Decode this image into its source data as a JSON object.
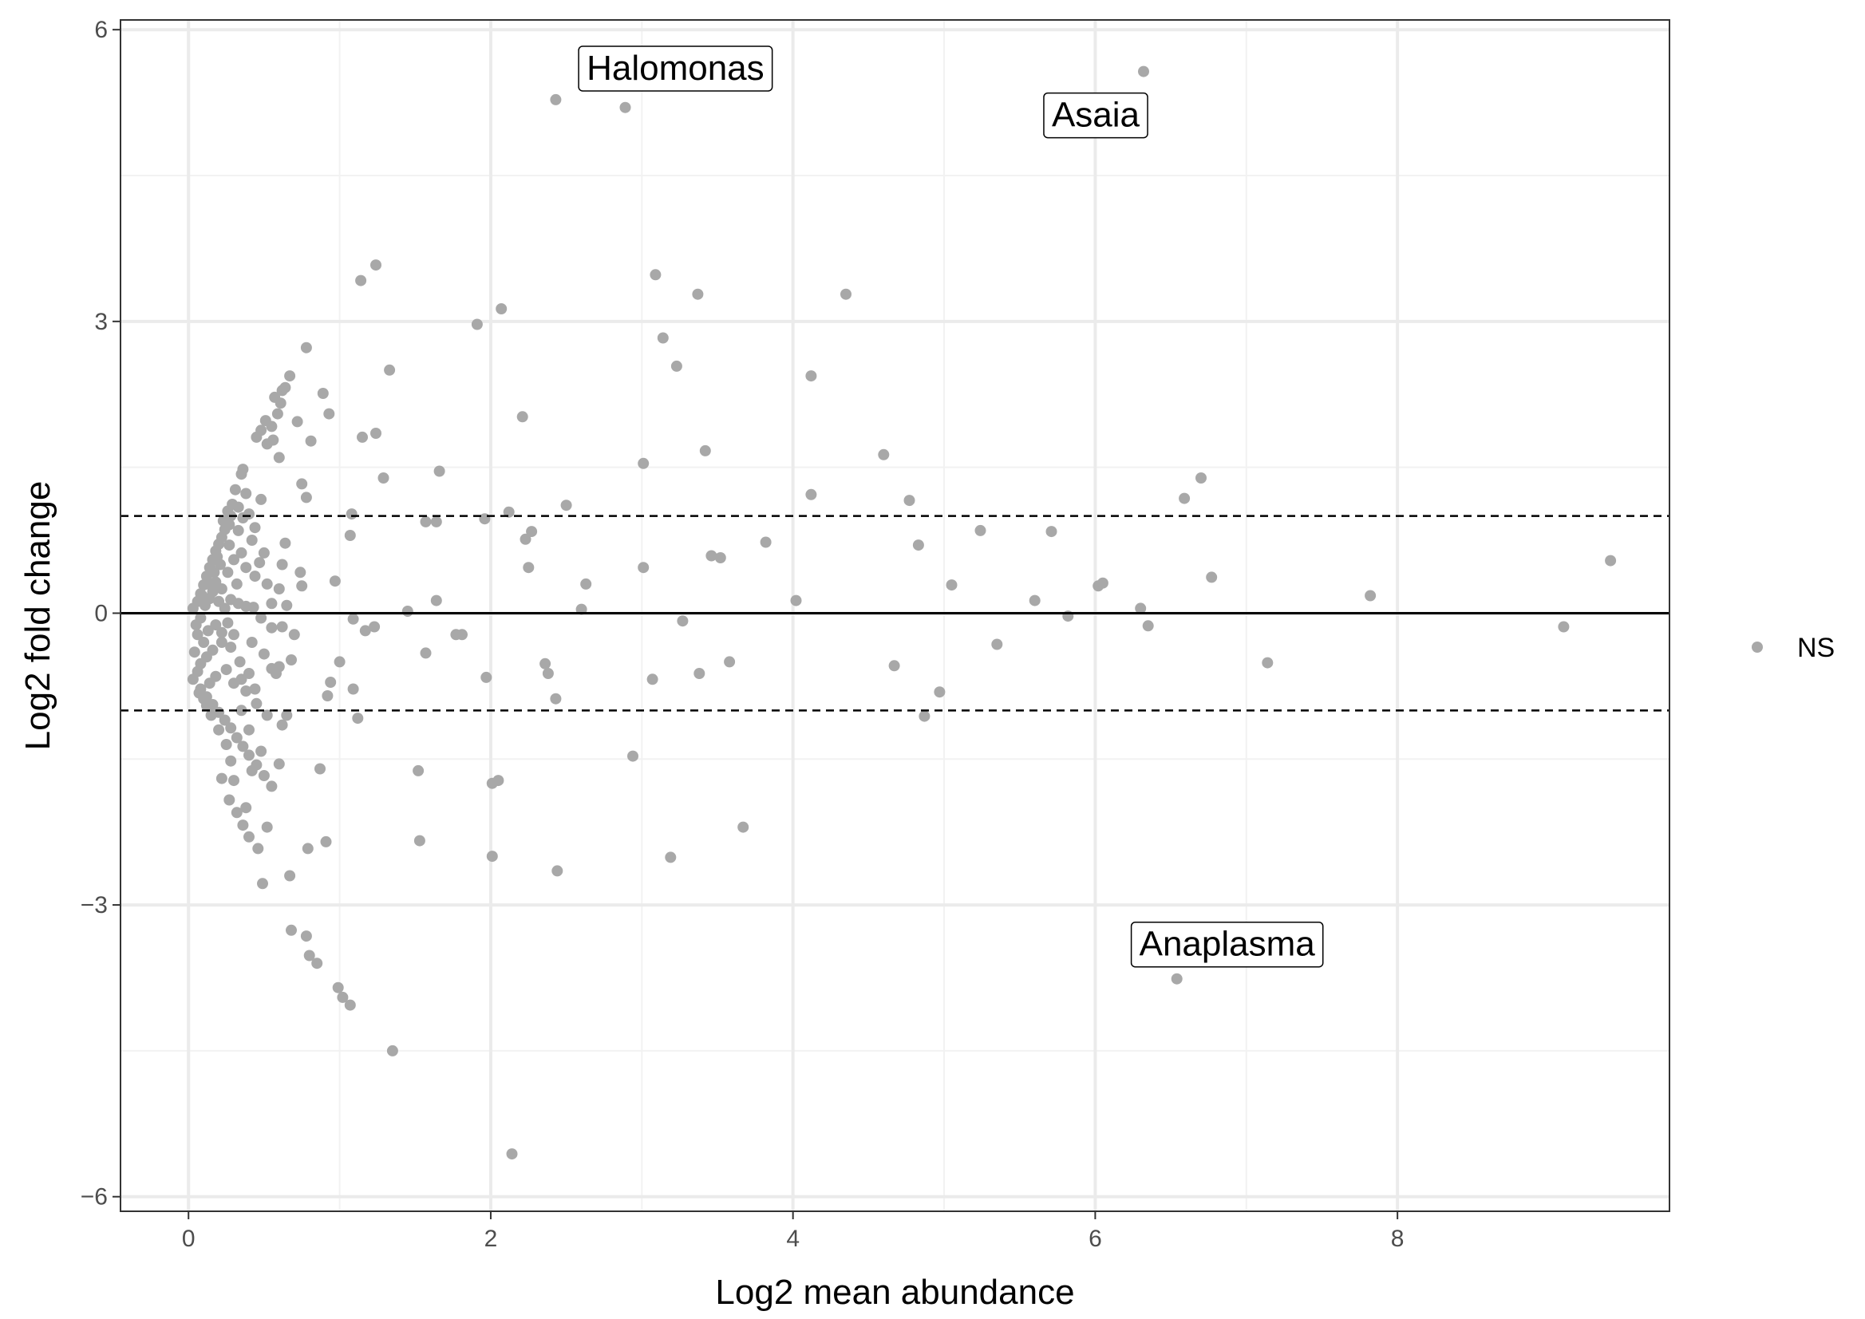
{
  "chart_data": {
    "type": "scatter",
    "xlabel": "Log2 mean abundance",
    "ylabel": "Log2 fold change",
    "xlim": [
      -0.45,
      9.8
    ],
    "ylim": [
      -6.15,
      6.1
    ],
    "x_ticks": [
      0,
      2,
      4,
      6,
      8
    ],
    "y_ticks": [
      -6,
      -3,
      0,
      3,
      6
    ],
    "grid": true,
    "reference_lines": [
      {
        "y": 0,
        "style": "solid"
      },
      {
        "y": 1,
        "style": "dashed"
      },
      {
        "y": -1,
        "style": "dashed"
      }
    ],
    "point_color": "#A8A8A8",
    "legend": {
      "position": "right",
      "entries": [
        {
          "label": "NS",
          "color": "#A8A8A8"
        }
      ]
    },
    "annotations": [
      {
        "label": "Halomonas",
        "x": 2.43,
        "y": 5.28
      },
      {
        "label": "Asaia",
        "x": 6.32,
        "y": 5.57
      },
      {
        "label": "Anaplasma",
        "x": 6.54,
        "y": -3.76
      }
    ],
    "series": [
      {
        "name": "NS",
        "points": [
          [
            2.43,
            5.28
          ],
          [
            2.89,
            5.2
          ],
          [
            6.32,
            5.57
          ],
          [
            6.54,
            -3.76
          ],
          [
            1.24,
            3.58
          ],
          [
            1.14,
            3.42
          ],
          [
            3.09,
            3.48
          ],
          [
            3.37,
            3.28
          ],
          [
            4.35,
            3.28
          ],
          [
            2.07,
            3.13
          ],
          [
            1.91,
            2.97
          ],
          [
            3.14,
            2.83
          ],
          [
            3.23,
            2.54
          ],
          [
            4.12,
            2.44
          ],
          [
            1.33,
            2.5
          ],
          [
            0.78,
            2.73
          ],
          [
            0.89,
            2.26
          ],
          [
            0.93,
            2.05
          ],
          [
            0.72,
            1.97
          ],
          [
            1.24,
            1.85
          ],
          [
            1.15,
            1.81
          ],
          [
            0.81,
            1.77
          ],
          [
            2.21,
            2.02
          ],
          [
            3.42,
            1.67
          ],
          [
            4.6,
            1.63
          ],
          [
            3.01,
            1.54
          ],
          [
            1.66,
            1.46
          ],
          [
            1.29,
            1.39
          ],
          [
            0.75,
            1.33
          ],
          [
            0.78,
            1.19
          ],
          [
            2.5,
            1.11
          ],
          [
            4.12,
            1.22
          ],
          [
            4.77,
            1.16
          ],
          [
            6.59,
            1.18
          ],
          [
            6.7,
            1.39
          ],
          [
            2.12,
            1.04
          ],
          [
            1.96,
            0.97
          ],
          [
            1.08,
            1.02
          ],
          [
            1.57,
            0.94
          ],
          [
            1.64,
            0.94
          ],
          [
            2.27,
            0.84
          ],
          [
            2.23,
            0.76
          ],
          [
            5.24,
            0.85
          ],
          [
            5.71,
            0.84
          ],
          [
            1.07,
            0.8
          ],
          [
            3.82,
            0.73
          ],
          [
            4.83,
            0.7
          ],
          [
            3.46,
            0.59
          ],
          [
            3.52,
            0.57
          ],
          [
            3.01,
            0.47
          ],
          [
            2.25,
            0.47
          ],
          [
            0.97,
            0.33
          ],
          [
            2.63,
            0.3
          ],
          [
            5.05,
            0.29
          ],
          [
            6.77,
            0.37
          ],
          [
            6.02,
            0.28
          ],
          [
            6.05,
            0.31
          ],
          [
            9.41,
            0.54
          ],
          [
            7.82,
            0.18
          ],
          [
            5.6,
            0.13
          ],
          [
            4.02,
            0.13
          ],
          [
            1.64,
            0.13
          ],
          [
            1.45,
            0.02
          ],
          [
            2.6,
            0.04
          ],
          [
            6.3,
            0.05
          ],
          [
            5.82,
            -0.03
          ],
          [
            6.35,
            -0.13
          ],
          [
            3.27,
            -0.08
          ],
          [
            1.09,
            -0.06
          ],
          [
            1.23,
            -0.14
          ],
          [
            1.81,
            -0.22
          ],
          [
            1.77,
            -0.22
          ],
          [
            1.17,
            -0.18
          ],
          [
            9.1,
            -0.14
          ],
          [
            5.35,
            -0.32
          ],
          [
            1.57,
            -0.41
          ],
          [
            1.0,
            -0.5
          ],
          [
            2.36,
            -0.52
          ],
          [
            2.38,
            -0.62
          ],
          [
            3.58,
            -0.5
          ],
          [
            3.38,
            -0.62
          ],
          [
            4.67,
            -0.54
          ],
          [
            7.14,
            -0.51
          ],
          [
            1.97,
            -0.66
          ],
          [
            3.07,
            -0.68
          ],
          [
            0.94,
            -0.71
          ],
          [
            1.09,
            -0.78
          ],
          [
            0.92,
            -0.85
          ],
          [
            2.43,
            -0.88
          ],
          [
            4.97,
            -0.81
          ],
          [
            4.87,
            -1.06
          ],
          [
            1.12,
            -1.08
          ],
          [
            2.94,
            -1.47
          ],
          [
            1.52,
            -1.62
          ],
          [
            0.87,
            -1.6
          ],
          [
            2.05,
            -1.72
          ],
          [
            2.01,
            -1.75
          ],
          [
            3.67,
            -2.2
          ],
          [
            1.53,
            -2.34
          ],
          [
            0.91,
            -2.35
          ],
          [
            0.79,
            -2.42
          ],
          [
            2.01,
            -2.5
          ],
          [
            3.19,
            -2.51
          ],
          [
            2.44,
            -2.65
          ],
          [
            0.67,
            -2.7
          ],
          [
            0.49,
            -2.78
          ],
          [
            0.68,
            -3.26
          ],
          [
            0.78,
            -3.32
          ],
          [
            0.8,
            -3.52
          ],
          [
            0.85,
            -3.6
          ],
          [
            0.99,
            -3.85
          ],
          [
            1.02,
            -3.95
          ],
          [
            1.07,
            -4.03
          ],
          [
            1.35,
            -4.5
          ],
          [
            2.14,
            -5.56
          ],
          [
            0.51,
            1.98
          ],
          [
            0.55,
            1.92
          ],
          [
            0.59,
            2.05
          ],
          [
            0.62,
            2.29
          ],
          [
            0.64,
            2.32
          ],
          [
            0.67,
            2.44
          ],
          [
            0.57,
            2.22
          ],
          [
            0.61,
            2.16
          ],
          [
            0.48,
            1.88
          ],
          [
            0.45,
            1.81
          ],
          [
            0.52,
            1.74
          ],
          [
            0.6,
            1.6
          ],
          [
            0.56,
            1.78
          ],
          [
            0.36,
            1.48
          ],
          [
            0.31,
            1.27
          ],
          [
            0.35,
            1.43
          ],
          [
            0.38,
            1.23
          ],
          [
            0.4,
            1.02
          ],
          [
            0.48,
            1.17
          ],
          [
            0.33,
            1.09
          ],
          [
            0.28,
            1.0
          ],
          [
            0.27,
            0.91
          ],
          [
            0.24,
            0.86
          ],
          [
            0.22,
            0.78
          ],
          [
            0.2,
            0.71
          ],
          [
            0.18,
            0.64
          ],
          [
            0.16,
            0.55
          ],
          [
            0.14,
            0.47
          ],
          [
            0.12,
            0.38
          ],
          [
            0.1,
            0.29
          ],
          [
            0.08,
            0.2
          ],
          [
            0.06,
            0.12
          ],
          [
            0.03,
            0.05
          ],
          [
            0.3,
            0.55
          ],
          [
            0.38,
            0.47
          ],
          [
            0.5,
            0.62
          ],
          [
            0.62,
            0.5
          ],
          [
            0.64,
            0.72
          ],
          [
            0.44,
            0.38
          ],
          [
            0.32,
            0.3
          ],
          [
            0.26,
            0.42
          ],
          [
            0.21,
            0.5
          ],
          [
            0.74,
            0.42
          ],
          [
            0.75,
            0.28
          ],
          [
            0.55,
            0.1
          ],
          [
            0.65,
            0.08
          ],
          [
            0.43,
            0.06
          ],
          [
            0.28,
            0.14
          ],
          [
            0.22,
            0.25
          ],
          [
            0.18,
            0.32
          ],
          [
            0.33,
            0.1
          ],
          [
            0.38,
            0.07
          ],
          [
            0.48,
            -0.05
          ],
          [
            0.55,
            -0.15
          ],
          [
            0.62,
            -0.14
          ],
          [
            0.7,
            -0.22
          ],
          [
            0.42,
            -0.3
          ],
          [
            0.5,
            -0.42
          ],
          [
            0.6,
            -0.55
          ],
          [
            0.68,
            -0.48
          ],
          [
            0.3,
            -0.22
          ],
          [
            0.22,
            -0.3
          ],
          [
            0.16,
            -0.38
          ],
          [
            0.12,
            -0.45
          ],
          [
            0.08,
            -0.52
          ],
          [
            0.06,
            -0.6
          ],
          [
            0.04,
            -0.4
          ],
          [
            0.03,
            -0.68
          ],
          [
            0.08,
            -0.78
          ],
          [
            0.12,
            -0.86
          ],
          [
            0.16,
            -0.94
          ],
          [
            0.2,
            -1.02
          ],
          [
            0.24,
            -1.1
          ],
          [
            0.28,
            -1.18
          ],
          [
            0.32,
            -1.28
          ],
          [
            0.36,
            -1.37
          ],
          [
            0.4,
            -1.46
          ],
          [
            0.45,
            -1.56
          ],
          [
            0.5,
            -1.67
          ],
          [
            0.55,
            -1.78
          ],
          [
            0.3,
            -0.72
          ],
          [
            0.38,
            -0.8
          ],
          [
            0.45,
            -0.93
          ],
          [
            0.52,
            -1.05
          ],
          [
            0.62,
            -1.15
          ],
          [
            0.35,
            -1.0
          ],
          [
            0.4,
            -1.2
          ],
          [
            0.28,
            -1.52
          ],
          [
            0.42,
            -1.62
          ],
          [
            0.22,
            -1.7
          ],
          [
            0.27,
            -1.92
          ],
          [
            0.32,
            -2.05
          ],
          [
            0.36,
            -2.18
          ],
          [
            0.4,
            -2.3
          ],
          [
            0.46,
            -2.42
          ],
          [
            0.6,
            -1.55
          ],
          [
            0.58,
            -0.62
          ],
          [
            0.55,
            -0.57
          ],
          [
            0.35,
            -0.68
          ],
          [
            0.25,
            -0.58
          ],
          [
            0.18,
            -0.65
          ],
          [
            0.14,
            -0.72
          ],
          [
            0.1,
            -0.3
          ],
          [
            0.06,
            -0.22
          ],
          [
            0.05,
            -0.12
          ],
          [
            0.08,
            -0.05
          ],
          [
            0.11,
            0.08
          ],
          [
            0.14,
            0.15
          ],
          [
            0.16,
            0.22
          ],
          [
            0.2,
            0.12
          ],
          [
            0.24,
            0.05
          ],
          [
            0.26,
            -0.1
          ],
          [
            0.18,
            -0.12
          ],
          [
            0.13,
            -0.18
          ],
          [
            0.22,
            -0.2
          ],
          [
            0.28,
            -0.35
          ],
          [
            0.34,
            -0.5
          ],
          [
            0.4,
            -0.62
          ],
          [
            0.44,
            -0.78
          ],
          [
            0.65,
            -1.05
          ],
          [
            0.48,
            -1.42
          ],
          [
            0.52,
            -2.2
          ],
          [
            0.38,
            -2.0
          ],
          [
            0.3,
            -1.72
          ],
          [
            0.25,
            -1.35
          ],
          [
            0.2,
            -1.2
          ],
          [
            0.15,
            -1.05
          ],
          [
            0.12,
            -0.95
          ],
          [
            0.1,
            -0.88
          ],
          [
            0.07,
            -0.82
          ],
          [
            0.23,
            0.95
          ],
          [
            0.26,
            1.05
          ],
          [
            0.29,
            1.12
          ],
          [
            0.33,
            0.85
          ],
          [
            0.36,
            0.98
          ],
          [
            0.44,
            0.88
          ],
          [
            0.52,
            0.3
          ],
          [
            0.6,
            0.25
          ],
          [
            0.17,
            0.42
          ],
          [
            0.19,
            0.58
          ],
          [
            0.13,
            0.3
          ],
          [
            0.09,
            0.18
          ],
          [
            0.35,
            0.62
          ],
          [
            0.42,
            0.75
          ],
          [
            0.47,
            0.52
          ],
          [
            0.27,
            0.7
          ]
        ]
      }
    ]
  }
}
